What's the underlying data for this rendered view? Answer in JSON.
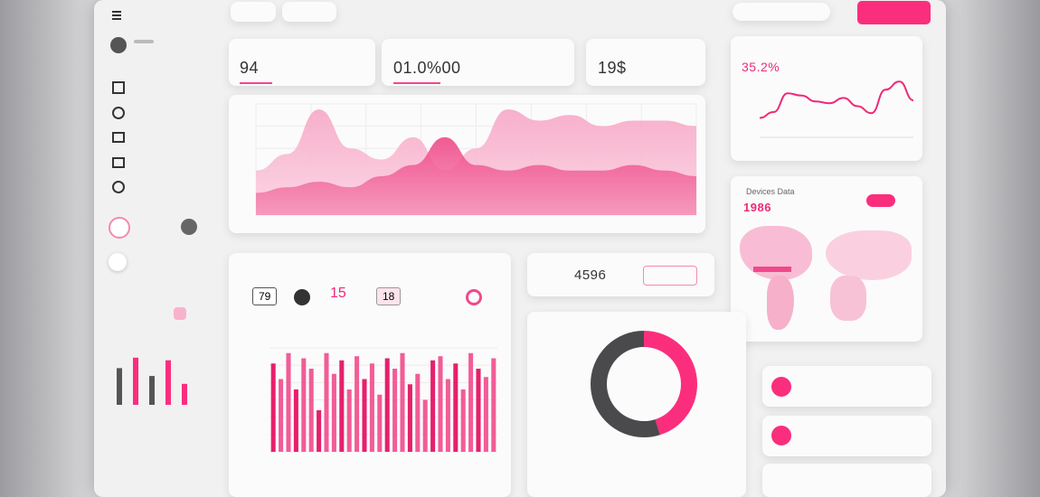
{
  "kpis": [
    {
      "value": "94"
    },
    {
      "value": "01.0%00"
    },
    {
      "value": "19$"
    }
  ],
  "trend": {
    "value": "35.2%",
    "values": [
      30,
      40,
      72,
      68,
      58,
      55,
      64,
      50,
      38,
      78,
      92,
      60
    ]
  },
  "area_chart": {
    "series": [
      {
        "values": [
          40,
          55,
          95,
          60,
          50,
          70,
          40,
          60,
          95,
          85,
          90,
          80,
          85,
          85,
          80
        ]
      },
      {
        "values": [
          20,
          25,
          30,
          25,
          35,
          45,
          70,
          45,
          40,
          45,
          40,
          40,
          45,
          40,
          35
        ]
      }
    ]
  },
  "map": {
    "title": "Devices Data",
    "value": "1986"
  },
  "bars": {
    "stats": [
      "79",
      "15",
      "18"
    ],
    "values": [
      85,
      70,
      95,
      60,
      90,
      80,
      40,
      95,
      75,
      88,
      60,
      92,
      70,
      85,
      55,
      90,
      80,
      95,
      65,
      75,
      50,
      88,
      92,
      70,
      85,
      60,
      95,
      80,
      72,
      90
    ]
  },
  "total": {
    "value": "4596"
  },
  "donut": {
    "values": [
      45,
      55
    ]
  },
  "sidebar_bars": {
    "values": [
      70,
      90,
      55,
      85,
      40
    ]
  }
}
